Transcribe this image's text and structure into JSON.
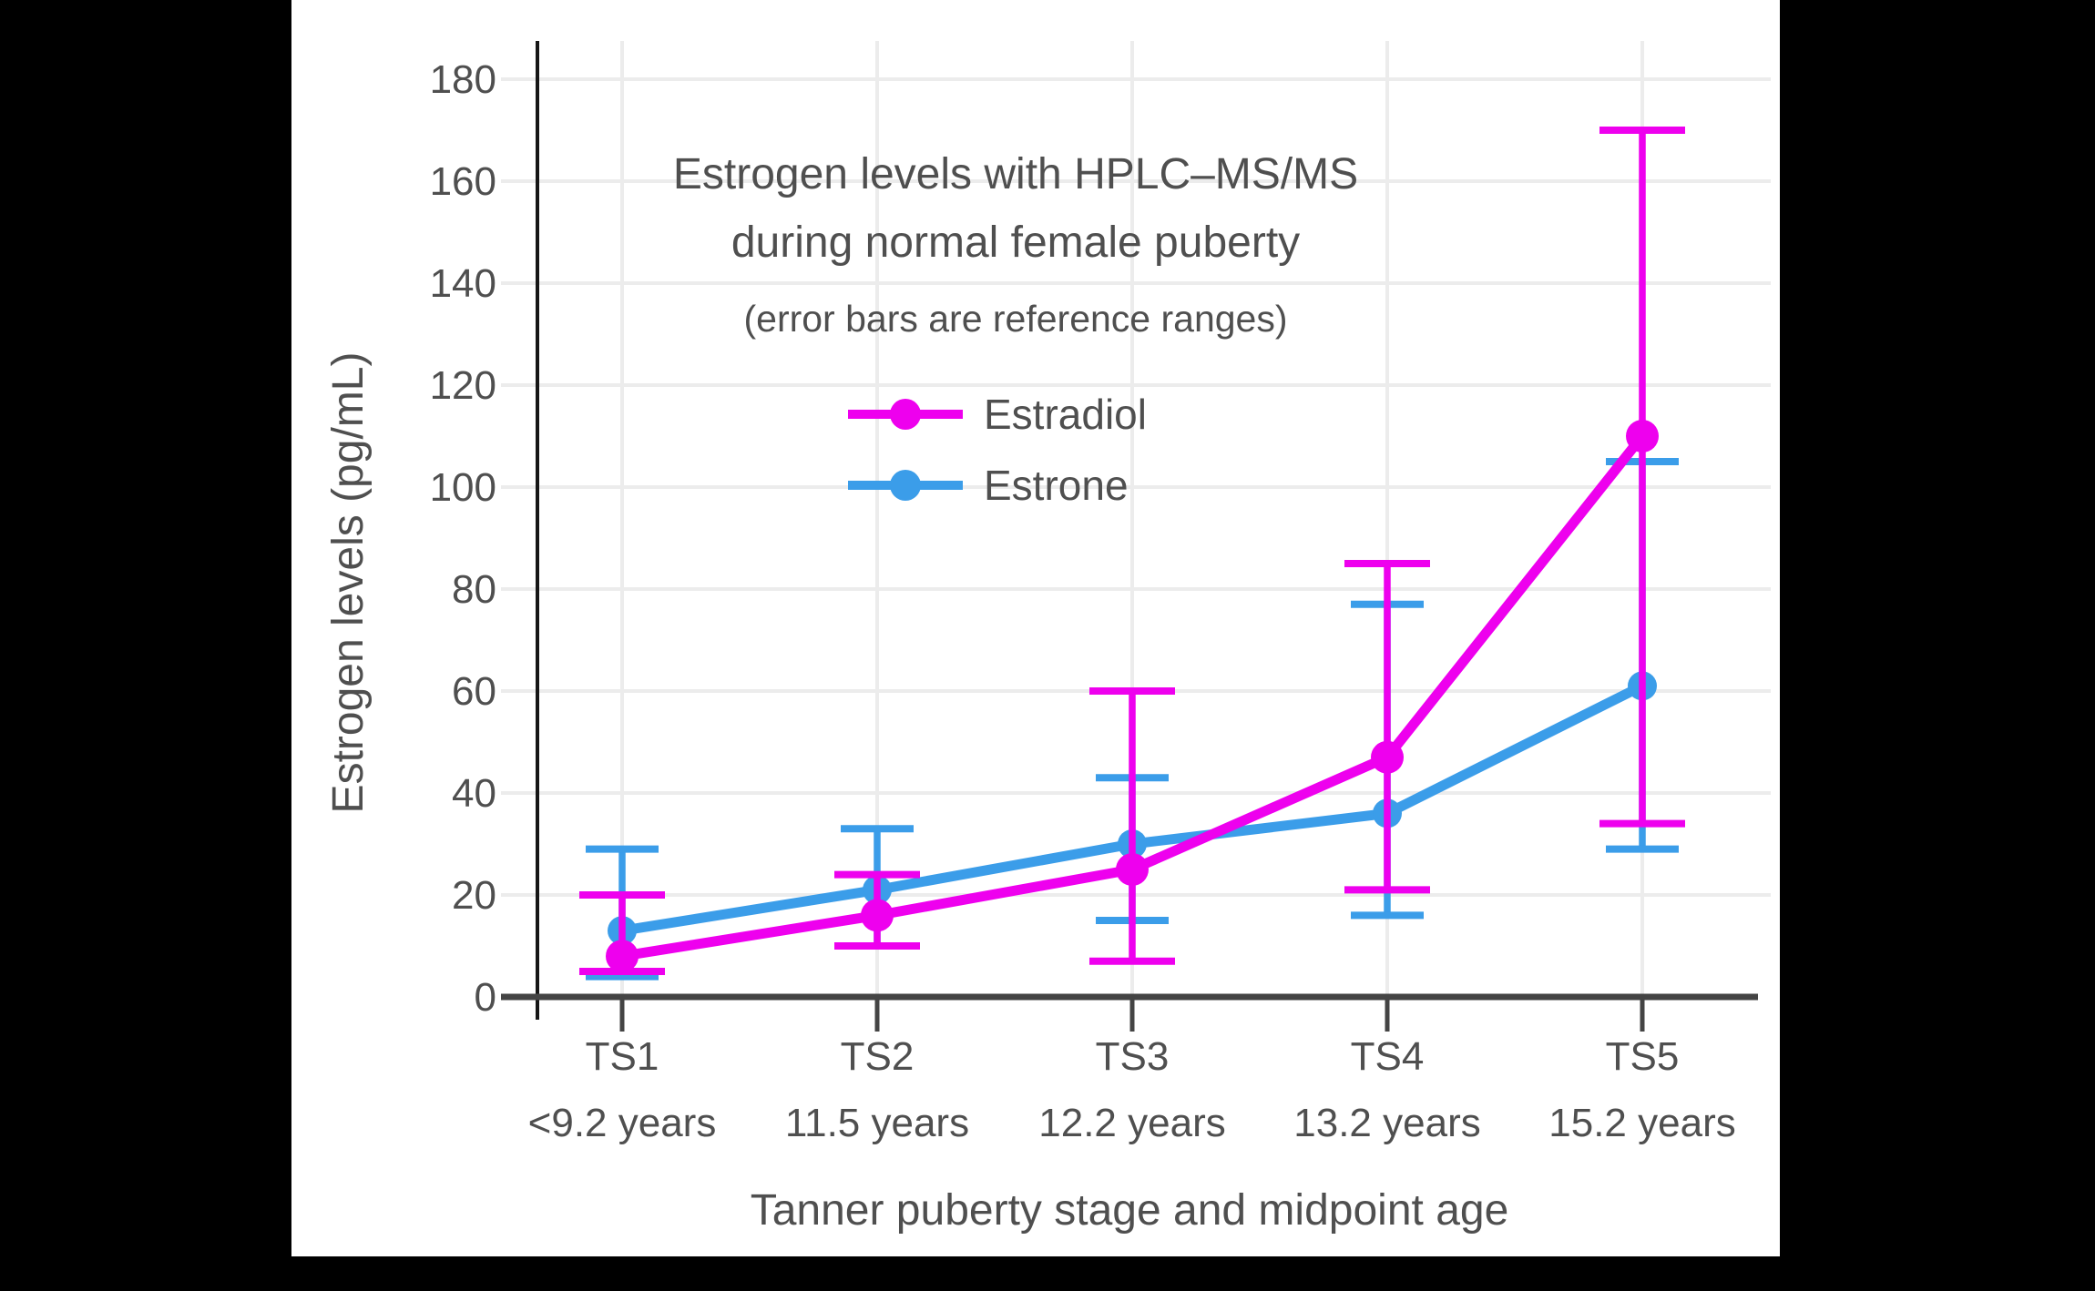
{
  "page": {
    "background": "#000000",
    "canvas_background": "#ffffff"
  },
  "chart_data": {
    "type": "line",
    "title": "Estrogen levels with HPLC–MS/MS",
    "title_line2": "during normal female puberty",
    "subtitle": "(error bars are reference ranges)",
    "ylabel": "Estrogen levels (pg/mL)",
    "xlabel": "Tanner puberty stage and midpoint age",
    "categories": [
      "TS1",
      "TS2",
      "TS3",
      "TS4",
      "TS5"
    ],
    "category_sublabels": [
      "<9.2 years",
      "11.5 years",
      "12.2 years",
      "13.2 years",
      "15.2 years"
    ],
    "yticks": [
      0,
      20,
      40,
      60,
      80,
      100,
      120,
      140,
      160,
      180
    ],
    "ylim": [
      0,
      187
    ],
    "grid": true,
    "legend_position": "inside-top-center",
    "error_bars": "reference ranges",
    "series": [
      {
        "name": "Estradiol",
        "color": "#ee00ee",
        "values": [
          8,
          16,
          25,
          47,
          110
        ],
        "error_low": [
          5,
          10,
          7,
          21,
          34
        ],
        "error_high": [
          20,
          24,
          60,
          85,
          170
        ]
      },
      {
        "name": "Estrone",
        "color": "#3b9de9",
        "values": [
          13,
          21,
          30,
          36,
          61
        ],
        "error_low": [
          4,
          10,
          15,
          16,
          29
        ],
        "error_high": [
          29,
          33,
          43,
          77,
          105
        ]
      }
    ],
    "colors": {
      "text": "#4f4f4f",
      "grid": "#ececec",
      "axis": "#444444",
      "spine": "#161616"
    }
  }
}
